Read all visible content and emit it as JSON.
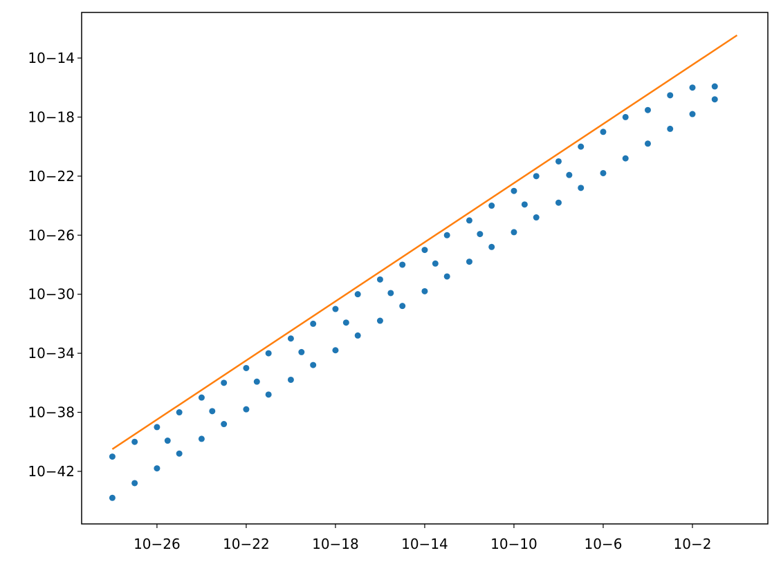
{
  "chart_data": {
    "type": "scatter",
    "xscale": "log",
    "yscale": "log",
    "xlim": [
      4.2e-30,
      24
    ],
    "ylim": [
      2.75e-46,
      1.23e-11
    ],
    "xticks": [
      {
        "value": 1e-26,
        "label": "10−26"
      },
      {
        "value": 1e-22,
        "label": "10−22"
      },
      {
        "value": 1e-18,
        "label": "10−18"
      },
      {
        "value": 1e-14,
        "label": "10−14"
      },
      {
        "value": 1e-10,
        "label": "10−10"
      },
      {
        "value": 1e-06,
        "label": "10−6"
      },
      {
        "value": 0.01,
        "label": "10−2"
      }
    ],
    "yticks": [
      {
        "value": 1e-14,
        "label": "10−14"
      },
      {
        "value": 1e-18,
        "label": "10−18"
      },
      {
        "value": 1e-22,
        "label": "10−22"
      },
      {
        "value": 1e-26,
        "label": "10−26"
      },
      {
        "value": 1e-30,
        "label": "10−30"
      },
      {
        "value": 1e-34,
        "label": "10−34"
      },
      {
        "value": 1e-38,
        "label": "10−38"
      },
      {
        "value": 1e-42,
        "label": "10−42"
      }
    ],
    "grid": false,
    "series": [
      {
        "type": "scatter",
        "color": "#1f77b4",
        "x": [
          1e-28,
          1e-27,
          1e-26,
          1e-25,
          1e-24,
          1e-23,
          1e-22,
          1e-21,
          1e-20,
          1e-19,
          1e-18,
          1e-17,
          1e-16,
          1e-15,
          1e-14,
          1e-13,
          1e-12,
          1e-11,
          1e-10,
          1e-09,
          1e-08,
          1e-07,
          1e-06,
          1e-05,
          0.0001,
          0.001,
          0.01,
          0.1,
          1e-28,
          1e-27,
          1e-26,
          1e-25,
          1e-24,
          1e-23,
          1e-22,
          1e-21,
          1e-20,
          1e-19,
          1e-18,
          1e-17,
          1e-16,
          1e-15,
          1e-14,
          1e-13,
          1e-12,
          1e-11,
          1e-10,
          1e-09,
          1e-08,
          1e-07,
          1e-06,
          1e-05,
          0.0001,
          0.001,
          0.01,
          0.1,
          3e-26,
          3e-24,
          3e-22,
          3e-20,
          3e-18,
          3e-16,
          3e-14,
          3e-12,
          3e-10,
          3e-08
        ],
        "y": [
          1e-41,
          1e-40,
          1e-39,
          1e-38,
          1e-37,
          1e-36,
          1e-35,
          1e-34,
          1e-33,
          1e-32,
          1e-31,
          1e-30,
          1e-29,
          1e-28,
          1e-27,
          1e-26,
          1e-25,
          1e-24,
          1e-23,
          1e-22,
          1e-21,
          1e-20,
          1e-19,
          1e-18,
          3e-18,
          3e-17,
          1e-16,
          1.2e-16,
          1.6e-44,
          1.6e-43,
          1.6e-42,
          1.6e-41,
          1.6e-40,
          1.6e-39,
          1.6e-38,
          1.6e-37,
          1.6e-36,
          1.6e-35,
          1.6e-34,
          1.6e-33,
          1.6e-32,
          1.6e-31,
          1.6e-30,
          1.6e-29,
          1.6e-28,
          1.6e-27,
          1.6e-26,
          1.6e-25,
          1.6e-24,
          1.6e-23,
          1.6e-22,
          1.6e-21,
          1.6e-20,
          1.6e-19,
          1.6e-18,
          1.6e-17,
          1.2e-40,
          1.2e-38,
          1.2e-36,
          1.2e-34,
          1.2e-32,
          1.2e-30,
          1.2e-28,
          1.2e-26,
          1.2e-24,
          1.2e-22
        ]
      },
      {
        "type": "line",
        "color": "#ff7f0e",
        "x": [
          1e-28,
          1
        ],
        "y": [
          3.2e-41,
          3.5e-13
        ]
      }
    ]
  }
}
